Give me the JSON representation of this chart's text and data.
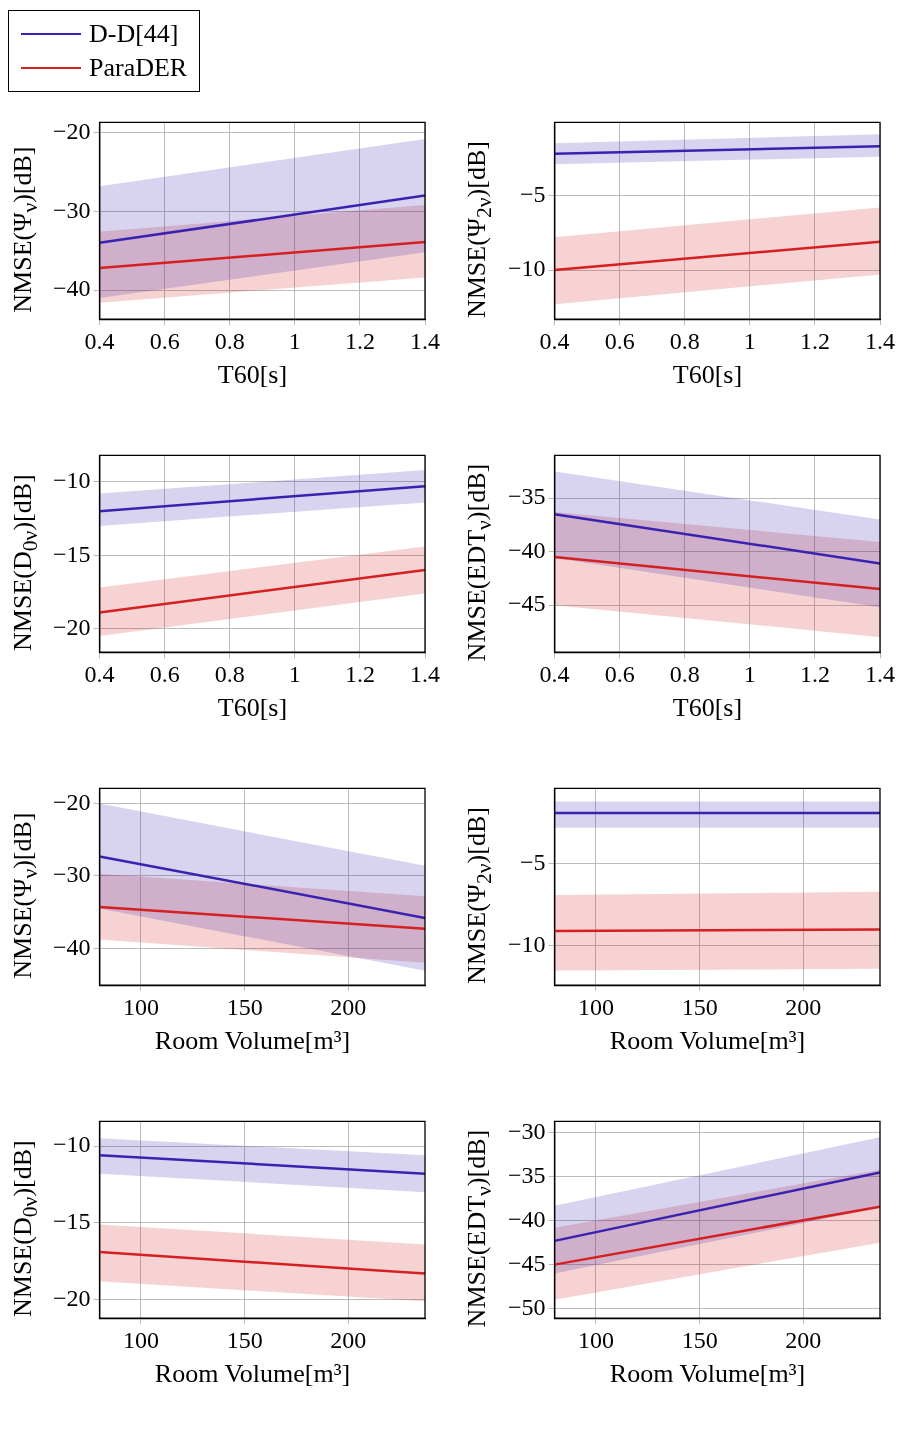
{
  "chart_data": [
    {
      "type": "line",
      "xlabel": "T60[s]",
      "ylabel": "NMSE(Ψ$_{ν}$)[dB]",
      "x": [
        0.4,
        1.4
      ],
      "xlim": [
        0.4,
        1.4
      ],
      "xticks": [
        0.4,
        0.6,
        0.8,
        1,
        1.2,
        1.4
      ],
      "ylim": [
        -43.7,
        -18.7
      ],
      "yticks": [
        -40,
        -30,
        -20
      ],
      "grid": true,
      "legend": "top left",
      "series": [
        {
          "name": "D-D[44]",
          "color": "#3a22b0",
          "values": [
            -34,
            -28
          ],
          "lower": [
            -41,
            -35.2
          ],
          "upper": [
            -26.8,
            -20.8
          ]
        },
        {
          "name": "ParaDER",
          "color": "#d42020",
          "values": [
            -37.2,
            -33.9
          ],
          "lower": [
            -41.6,
            -38.4
          ],
          "upper": [
            -32.6,
            -29.2
          ]
        }
      ]
    },
    {
      "type": "line",
      "xlabel": "T60[s]",
      "ylabel": "NMSE(Ψ$_{2ν}$)[dB]",
      "x": [
        0.4,
        1.4
      ],
      "xlim": [
        0.4,
        1.4
      ],
      "xticks": [
        0.4,
        0.6,
        0.8,
        1,
        1.2,
        1.4
      ],
      "ylim": [
        -13.3,
        -0.1
      ],
      "yticks": [
        -10,
        -5
      ],
      "grid": true,
      "series": [
        {
          "color": "#3a22b0",
          "values": [
            -2.2,
            -1.7
          ],
          "lower": [
            -2.9,
            -2.4
          ],
          "upper": [
            -1.5,
            -0.9
          ]
        },
        {
          "color": "#d42020",
          "values": [
            -10,
            -8.1
          ],
          "lower": [
            -12.3,
            -10.3
          ],
          "upper": [
            -7.8,
            -5.8
          ]
        }
      ]
    },
    {
      "type": "line",
      "xlabel": "T60[s]",
      "ylabel": "NMSE(D$_{0ν}$)[dB]",
      "x": [
        0.4,
        1.4
      ],
      "xlim": [
        0.4,
        1.4
      ],
      "xticks": [
        0.4,
        0.6,
        0.8,
        1,
        1.2,
        1.4
      ],
      "ylim": [
        -21.6,
        -8.2
      ],
      "yticks": [
        -20,
        -15,
        -10
      ],
      "grid": true,
      "series": [
        {
          "color": "#3a22b0",
          "values": [
            -12,
            -10.3
          ],
          "lower": [
            -13,
            -11.4
          ],
          "upper": [
            -10.8,
            -9.2
          ]
        },
        {
          "color": "#d42020",
          "values": [
            -18.9,
            -16
          ],
          "lower": [
            -20.5,
            -17.6
          ],
          "upper": [
            -17.2,
            -14.4
          ]
        }
      ]
    },
    {
      "type": "line",
      "xlabel": "T60[s]",
      "ylabel": "NMSE(EDT$_{ν}$)[dB]",
      "x": [
        0.4,
        1.4
      ],
      "xlim": [
        0.4,
        1.4
      ],
      "xticks": [
        0.4,
        0.6,
        0.8,
        1,
        1.2,
        1.4
      ],
      "ylim": [
        -49.4,
        -31
      ],
      "yticks": [
        -45,
        -40,
        -35
      ],
      "grid": true,
      "series": [
        {
          "color": "#3a22b0",
          "values": [
            -36.5,
            -41.1
          ],
          "lower": [
            -40.6,
            -45.2
          ],
          "upper": [
            -32.5,
            -37
          ]
        },
        {
          "color": "#d42020",
          "values": [
            -40.5,
            -43.5
          ],
          "lower": [
            -45,
            -48
          ],
          "upper": [
            -36.3,
            -39.1
          ]
        }
      ]
    },
    {
      "type": "line",
      "xlabel": "Room Volume[m³]",
      "ylabel": "NMSE(Ψ$_{ν}$)[dB]",
      "x": [
        80,
        237
      ],
      "xlim": [
        80,
        237
      ],
      "xticks": [
        100,
        150,
        200
      ],
      "ylim": [
        -45.1,
        -17.9
      ],
      "yticks": [
        -40,
        -30,
        -20
      ],
      "grid": true,
      "series": [
        {
          "color": "#3a22b0",
          "values": [
            -27.3,
            -35.8
          ],
          "lower": [
            -34.5,
            -43.1
          ],
          "upper": [
            -20,
            -28.6
          ]
        },
        {
          "color": "#d42020",
          "values": [
            -34.3,
            -37.3
          ],
          "lower": [
            -38.8,
            -42
          ],
          "upper": [
            -29.7,
            -32.8
          ]
        }
      ]
    },
    {
      "type": "line",
      "xlabel": "Room Volume[m³]",
      "ylabel": "NMSE(Ψ$_{2ν}$)[dB]",
      "x": [
        80,
        237
      ],
      "xlim": [
        80,
        237
      ],
      "xticks": [
        100,
        150,
        200
      ],
      "ylim": [
        -12.4,
        -0.4
      ],
      "yticks": [
        -10,
        -5
      ],
      "grid": true,
      "series": [
        {
          "color": "#3a22b0",
          "values": [
            -1.9,
            -1.9
          ],
          "lower": [
            -2.8,
            -2.8
          ],
          "upper": [
            -1.2,
            -1.2
          ]
        },
        {
          "color": "#d42020",
          "values": [
            -9.1,
            -9
          ],
          "lower": [
            -11.5,
            -11.4
          ],
          "upper": [
            -6.9,
            -6.7
          ]
        }
      ]
    },
    {
      "type": "line",
      "xlabel": "Room Volume[m³]",
      "ylabel": "NMSE(D$_{0ν}$)[dB]",
      "x": [
        80,
        237
      ],
      "xlim": [
        80,
        237
      ],
      "xticks": [
        100,
        150,
        200
      ],
      "ylim": [
        -21.2,
        -8.4
      ],
      "yticks": [
        -20,
        -15,
        -10
      ],
      "grid": true,
      "series": [
        {
          "color": "#3a22b0",
          "values": [
            -10.6,
            -11.8
          ],
          "lower": [
            -11.8,
            -13
          ],
          "upper": [
            -9.5,
            -10.6
          ]
        },
        {
          "color": "#d42020",
          "values": [
            -16.9,
            -18.3
          ],
          "lower": [
            -18.8,
            -20.1
          ],
          "upper": [
            -15.1,
            -16.4
          ]
        }
      ]
    },
    {
      "type": "line",
      "xlabel": "Room Volume[m³]",
      "ylabel": "NMSE(EDT$_{ν}$)[dB]",
      "x": [
        80,
        237
      ],
      "xlim": [
        80,
        237
      ],
      "xticks": [
        100,
        150,
        200
      ],
      "ylim": [
        -51.1,
        -28.7
      ],
      "yticks": [
        -50,
        -45,
        -40,
        -35,
        -30
      ],
      "grid": true,
      "series": [
        {
          "color": "#3a22b0",
          "values": [
            -42.3,
            -34.5
          ],
          "lower": [
            -46,
            -38.5
          ],
          "upper": [
            -38.3,
            -30.5
          ]
        },
        {
          "color": "#d42020",
          "values": [
            -45,
            -38.4
          ],
          "lower": [
            -49,
            -42.5
          ],
          "upper": [
            -40.8,
            -34.2
          ]
        }
      ]
    }
  ]
}
